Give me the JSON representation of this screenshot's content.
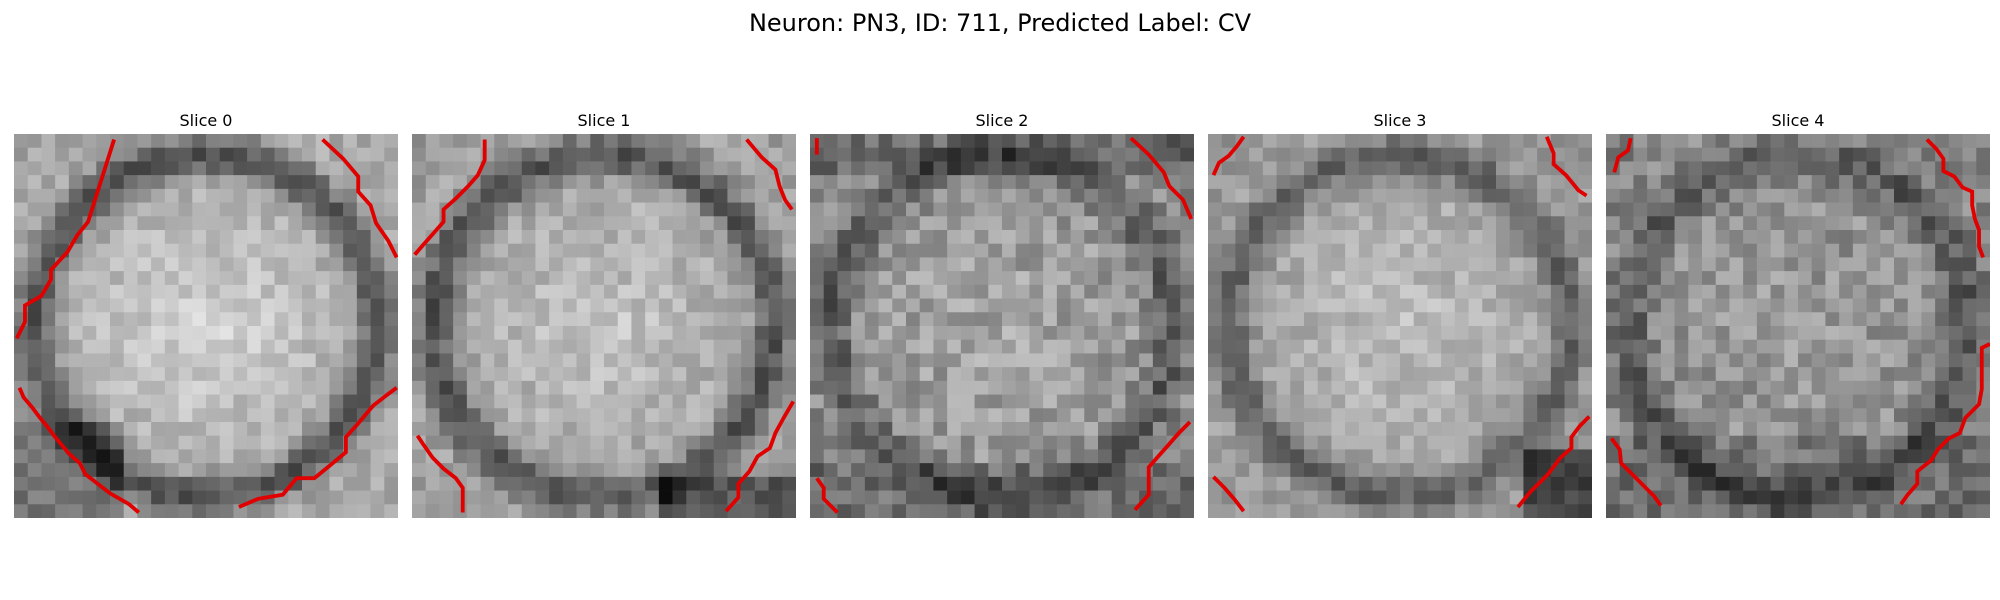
{
  "figure": {
    "title": "Neuron: PN3, ID: 711, Predicted Label: CV"
  },
  "panels": [
    {
      "title": "Slice 0",
      "image_kind": "grayscale microscopy crop",
      "overlay_color": "#e00000",
      "intensity_profile": {
        "base": 178,
        "center": 212,
        "ring": 96,
        "corner_shadow": 30,
        "noise": 44
      }
    },
    {
      "title": "Slice 1",
      "image_kind": "grayscale microscopy crop",
      "overlay_color": "#e00000",
      "intensity_profile": {
        "base": 170,
        "center": 198,
        "ring": 88,
        "corner_shadow": 35,
        "noise": 48
      }
    },
    {
      "title": "Slice 2",
      "image_kind": "grayscale microscopy crop",
      "overlay_color": "#e00000",
      "intensity_profile": {
        "base": 152,
        "center": 165,
        "ring": 62,
        "corner_shadow": 55,
        "noise": 64
      }
    },
    {
      "title": "Slice 3",
      "image_kind": "grayscale microscopy crop",
      "overlay_color": "#e00000",
      "intensity_profile": {
        "base": 168,
        "center": 192,
        "ring": 72,
        "corner_shadow": 48,
        "noise": 46
      }
    },
    {
      "title": "Slice 4",
      "image_kind": "grayscale microscopy crop",
      "overlay_color": "#e00000",
      "intensity_profile": {
        "base": 145,
        "center": 154,
        "ring": 58,
        "corner_shadow": 42,
        "noise": 62
      }
    }
  ]
}
